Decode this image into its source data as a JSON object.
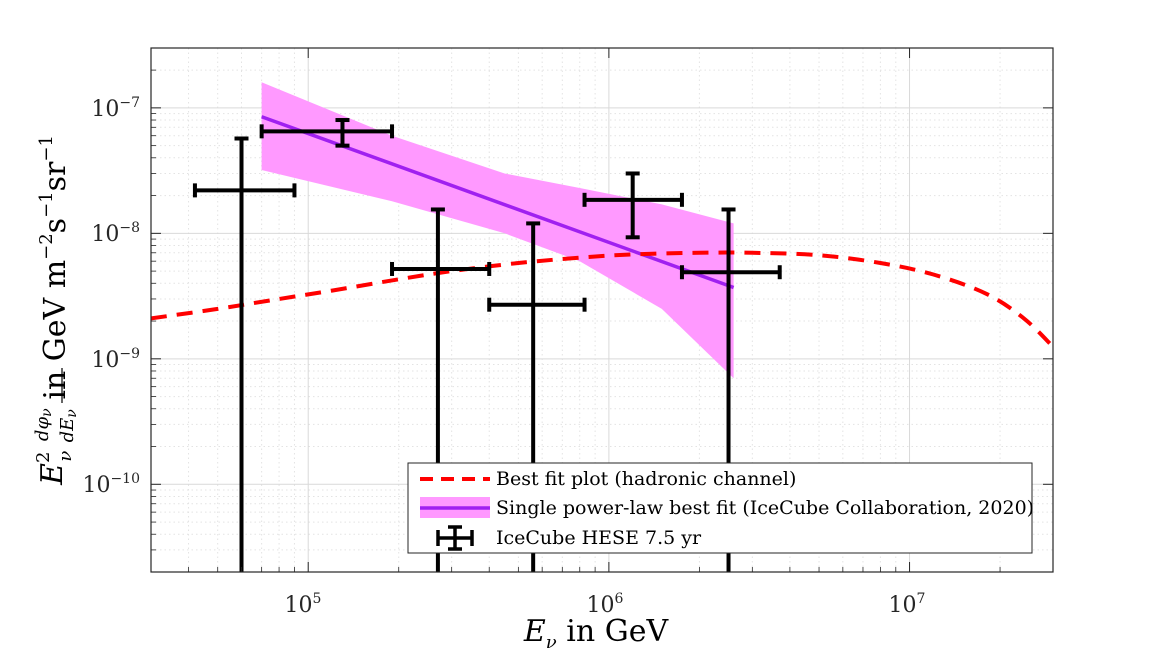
{
  "chart_data": {
    "type": "scatter",
    "xscale": "log",
    "yscale": "log",
    "xlim": [
      30000,
      30000000
    ],
    "ylim": [
      2e-11,
      3e-07
    ],
    "grid": true,
    "x_ticks": [
      {
        "value": 100000,
        "base": "10",
        "exp": "5"
      },
      {
        "value": 1000000,
        "base": "10",
        "exp": "6"
      },
      {
        "value": 10000000,
        "base": "10",
        "exp": "7"
      }
    ],
    "y_ticks": [
      {
        "value": 1e-10,
        "base": "10",
        "exp": "−10"
      },
      {
        "value": 1e-09,
        "base": "10",
        "exp": "−9"
      },
      {
        "value": 1e-08,
        "base": "10",
        "exp": "−8"
      },
      {
        "value": 1e-07,
        "base": "10",
        "exp": "−7"
      }
    ],
    "xlabel": {
      "symbol": "E",
      "sub": "ν",
      "text": " in GeV"
    },
    "ylabel": {
      "E": "E",
      "E_sup": "2",
      "E_sub": "ν",
      "frac_num": "dφ",
      "frac_num_sub": "ν",
      "frac_den": "dE",
      "frac_den_sub": "ν",
      "text": " in GeV m",
      "exp1": "−2",
      "s": "s",
      "exp2": "−1",
      "sr": "sr",
      "exp3": "−1"
    },
    "series": [
      {
        "name": "Best fit plot (hadronic channel)",
        "style": "dashed",
        "color": "#ff0000",
        "points": [
          [
            30000,
            2.1e-09
          ],
          [
            50000,
            2.5e-09
          ],
          [
            80000,
            3e-09
          ],
          [
            120000,
            3.5e-09
          ],
          [
            200000,
            4.3e-09
          ],
          [
            300000,
            5e-09
          ],
          [
            500000,
            5.8e-09
          ],
          [
            800000,
            6.4e-09
          ],
          [
            1200000,
            6.8e-09
          ],
          [
            2000000,
            7e-09
          ],
          [
            3000000,
            7e-09
          ],
          [
            5000000,
            6.7e-09
          ],
          [
            8000000,
            5.8e-09
          ],
          [
            12000000,
            4.7e-09
          ],
          [
            18000000,
            3.3e-09
          ],
          [
            24000000,
            2.1e-09
          ],
          [
            30000000,
            1.25e-09
          ]
        ]
      },
      {
        "name": "Single power-law best fit (IceCube Collaboration, 2020)",
        "style": "line+band",
        "color": "#a020f0",
        "band_color": "#ff99ff",
        "line": [
          [
            70000,
            8.5e-08
          ],
          [
            2600000,
            3.7e-09
          ]
        ],
        "band_upper": [
          [
            70000,
            1.6e-07
          ],
          [
            190000,
            6e-08
          ],
          [
            450000,
            3e-08
          ],
          [
            800000,
            2.3e-08
          ],
          [
            1500000,
            1.7e-08
          ],
          [
            2600000,
            1.2e-08
          ]
        ],
        "band_lower": [
          [
            2600000,
            7e-10
          ],
          [
            1500000,
            2.5e-09
          ],
          [
            800000,
            6e-09
          ],
          [
            450000,
            1e-08
          ],
          [
            190000,
            1.8e-08
          ],
          [
            70000,
            3.2e-08
          ]
        ]
      },
      {
        "name": "IceCube HESE 7.5 yr",
        "style": "errorbars",
        "color": "#000000",
        "points": [
          {
            "x": 60000,
            "y": 2.2e-08,
            "x_lo": 42000,
            "x_hi": 90000,
            "y_lo": 1e-12,
            "y_hi": 5.7e-08
          },
          {
            "x": 130000,
            "y": 6.5e-08,
            "x_lo": 70000,
            "x_hi": 190000,
            "y_lo": 5e-08,
            "y_hi": 8e-08
          },
          {
            "x": 270000,
            "y": 5.2e-09,
            "x_lo": 190000,
            "x_hi": 400000,
            "y_lo": 1e-12,
            "y_hi": 1.55e-08
          },
          {
            "x": 560000,
            "y": 2.7e-09,
            "x_lo": 400000,
            "x_hi": 830000,
            "y_lo": 1e-12,
            "y_hi": 1.2e-08
          },
          {
            "x": 1200000,
            "y": 1.85e-08,
            "x_lo": 830000,
            "x_hi": 1750000,
            "y_lo": 9.3e-09,
            "y_hi": 3e-08
          },
          {
            "x": 2500000,
            "y": 4.9e-09,
            "x_lo": 1750000,
            "x_hi": 3700000,
            "y_lo": 1e-12,
            "y_hi": 1.55e-08
          }
        ]
      }
    ],
    "legend": {
      "placement": "bottom-right",
      "entries": [
        "Best fit plot (hadronic channel)",
        "Single power-law best fit (IceCube Collaboration, 2020)",
        "IceCube HESE 7.5 yr"
      ]
    }
  }
}
